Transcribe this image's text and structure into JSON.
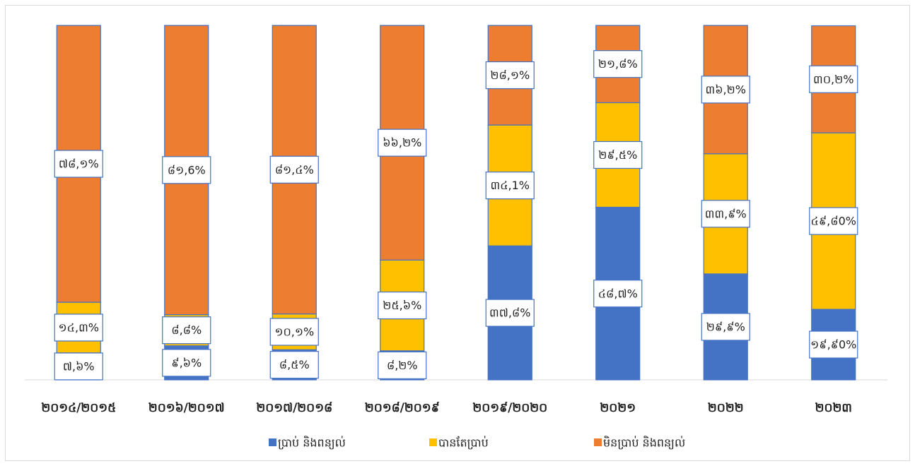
{
  "chart_data": {
    "type": "stacked_bar",
    "categories": [
      "២០១៤/២០១៥",
      "២០១៦/២០១៧",
      "២០១៧/២០១៨",
      "២០១៨/២០១៩",
      "២០១៩/២០២០",
      "២០២១",
      "២០២២",
      "២០២៣"
    ],
    "series": [
      {
        "name": "ប្រាប់ និងពន្យល់",
        "color": "#4472c4",
        "values": [
          7.6,
          9.6,
          8.5,
          8.2,
          37.8,
          48.7,
          29.9,
          19.9
        ],
        "value_labels": [
          "៧,៦%",
          "៩,៦%",
          "៨,៥%",
          "៨,២%",
          "៣៧,៨%",
          "៤៨,៧%",
          "២៩,៩%",
          "១៩,៩0%"
        ]
      },
      {
        "name": "បានតែប្រាប់",
        "color": "#ffc000",
        "values": [
          14.3,
          8.8,
          10.1,
          25.6,
          34.1,
          29.5,
          33.9,
          49.8
        ],
        "value_labels": [
          "១៤,៣%",
          "៨,៨%",
          "១០,១%",
          "២៥,៦%",
          "៣៤,1%",
          "២៩,៥%",
          "៣៣,៩%",
          "៤៩,៨0%"
        ]
      },
      {
        "name": "មិនប្រាប់ និងពន្យល់",
        "color": "#ed7d31",
        "values": [
          78.1,
          81.6,
          81.4,
          66.2,
          28.1,
          21.8,
          36.2,
          30.2
        ],
        "value_labels": [
          "៧៨,១%",
          "៨១,6%",
          "៨១,៤%",
          "៦៦,២%",
          "២៨,១%",
          "២១,៨%",
          "៣៦,២%",
          "៣០,២%"
        ]
      }
    ],
    "ylim": [
      0,
      100
    ],
    "legend": "bottom"
  }
}
